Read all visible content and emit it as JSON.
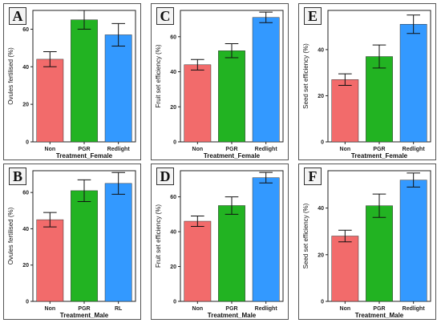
{
  "colors": {
    "Non": "#f26b6b",
    "PGR": "#22b322",
    "Redlight": "#3399ff",
    "RL": "#3399ff"
  },
  "chart_data": [
    {
      "id": "A",
      "type": "bar",
      "categories": [
        "Non",
        "PGR",
        "Redlight"
      ],
      "values": [
        44,
        65,
        57
      ],
      "errors": [
        4,
        5,
        6
      ],
      "ylim": [
        0,
        70
      ],
      "yticks": [
        0,
        20,
        40,
        60
      ],
      "ylabel": "Ovules fertilised (%)",
      "xlabel": "Treatment_Female"
    },
    {
      "id": "C",
      "type": "bar",
      "categories": [
        "Non",
        "PGR",
        "Redlight"
      ],
      "values": [
        44,
        52,
        71
      ],
      "errors": [
        3,
        4,
        3
      ],
      "ylim": [
        0,
        75
      ],
      "yticks": [
        0,
        20,
        40,
        60
      ],
      "ylabel": "Fruit set efficiency (%)",
      "xlabel": "Treatment_Female"
    },
    {
      "id": "E",
      "type": "bar",
      "categories": [
        "Non",
        "PGR",
        "Redlight"
      ],
      "values": [
        27,
        37,
        51
      ],
      "errors": [
        2.5,
        5,
        4
      ],
      "ylim": [
        0,
        57
      ],
      "yticks": [
        0,
        20,
        40
      ],
      "ylabel": "Seed set efficiency (%)",
      "xlabel": "Treatment_Female"
    },
    {
      "id": "B",
      "type": "bar",
      "categories": [
        "Non",
        "PGR",
        "RL"
      ],
      "values": [
        45,
        61,
        65
      ],
      "errors": [
        4,
        6,
        6
      ],
      "ylim": [
        0,
        72
      ],
      "yticks": [
        0,
        20,
        40,
        60
      ],
      "ylabel": "Ovules fertilised (%)",
      "xlabel": "Treatment_Male"
    },
    {
      "id": "D",
      "type": "bar",
      "categories": [
        "Non",
        "PGR",
        "Redlight"
      ],
      "values": [
        46,
        55,
        71
      ],
      "errors": [
        3,
        5,
        3
      ],
      "ylim": [
        0,
        75
      ],
      "yticks": [
        0,
        20,
        40,
        60
      ],
      "ylabel": "Fruit set efficiency (%)",
      "xlabel": "Treatment_Male"
    },
    {
      "id": "F",
      "type": "bar",
      "categories": [
        "Non",
        "PGR",
        "Redlight"
      ],
      "values": [
        28,
        41,
        52
      ],
      "errors": [
        2.5,
        5,
        3
      ],
      "ylim": [
        0,
        56
      ],
      "yticks": [
        0,
        20,
        40
      ],
      "ylabel": "Seed set efficiency (%)",
      "xlabel": "Treatment_Male"
    }
  ]
}
